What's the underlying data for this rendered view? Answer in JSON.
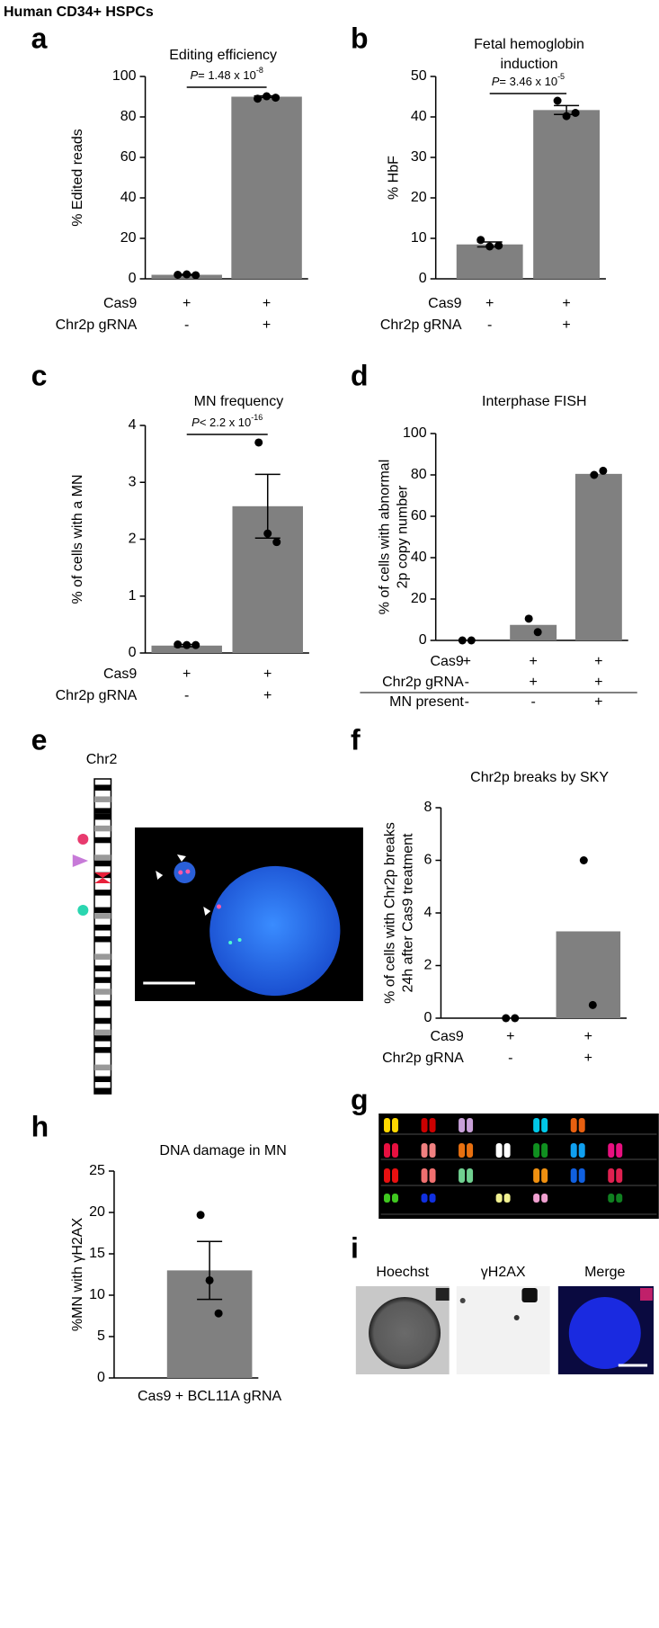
{
  "figure_title": "Human CD34+ HSPCs",
  "chart_data": [
    {
      "panel": "a",
      "type": "bar",
      "title": [
        "Editing efficiency"
      ],
      "ylabel": [
        "% Edited reads"
      ],
      "ylim": [
        0,
        100
      ],
      "yticks": [
        0,
        20,
        40,
        60,
        80,
        100
      ],
      "conditions": [
        {
          "name": "Cas9",
          "signs": [
            "+",
            "+"
          ]
        },
        {
          "name": "Chr2p gRNA",
          "signs": [
            "-",
            "+"
          ]
        }
      ],
      "values": [
        2,
        90
      ],
      "errors": [
        0.2,
        0.4
      ],
      "points": [
        [
          2,
          2.2,
          1.8
        ],
        [
          89,
          90.2,
          89.5
        ]
      ],
      "color": "#808080",
      "pvalue": {
        "symbol": "P",
        "text": "= 1.48 x 10",
        "exponent": "-8"
      }
    },
    {
      "panel": "b",
      "type": "bar",
      "title": [
        "Fetal hemoglobin",
        "induction"
      ],
      "ylabel": [
        "% HbF"
      ],
      "ylim": [
        0,
        50
      ],
      "yticks": [
        0,
        10,
        20,
        30,
        40,
        50
      ],
      "conditions": [
        {
          "name": "Cas9",
          "signs": [
            "+",
            "+"
          ]
        },
        {
          "name": "Chr2p gRNA",
          "signs": [
            "-",
            "+"
          ]
        }
      ],
      "values": [
        8.5,
        41.7
      ],
      "errors": [
        0.6,
        1.1
      ],
      "points": [
        [
          9.6,
          8,
          8.2
        ],
        [
          44,
          40.2,
          41
        ]
      ],
      "color": "#808080",
      "pvalue": {
        "symbol": "P",
        "text": "= 3.46 x 10",
        "exponent": "-5"
      }
    },
    {
      "panel": "c",
      "type": "bar",
      "title": [
        "MN frequency"
      ],
      "ylabel": [
        "% of cells with a MN"
      ],
      "ylim": [
        0,
        4
      ],
      "yticks": [
        0,
        1,
        2,
        3,
        4
      ],
      "conditions": [
        {
          "name": "Cas9",
          "signs": [
            "+",
            "+"
          ]
        },
        {
          "name": "Chr2p gRNA",
          "signs": [
            "-",
            "+"
          ]
        }
      ],
      "values": [
        0.13,
        2.58
      ],
      "errors": [
        0.02,
        0.56
      ],
      "points": [
        [
          0.15,
          0.14,
          0.14
        ],
        [
          3.7,
          2.1,
          1.95
        ]
      ],
      "color": "#808080",
      "pvalue": {
        "symbol": "P",
        "text": "< 2.2 x 10",
        "exponent": "-16"
      }
    },
    {
      "panel": "d",
      "type": "bar",
      "title": [
        "Interphase FISH"
      ],
      "ylabel": [
        "% of cells with abnormal",
        "2p copy number"
      ],
      "ylim": [
        0,
        100
      ],
      "yticks": [
        0,
        20,
        40,
        60,
        80,
        100
      ],
      "conditions": [
        {
          "name": "Cas9",
          "signs": [
            "+",
            "+",
            "+"
          ]
        },
        {
          "name": "Chr2p gRNA",
          "signs": [
            "-",
            "+",
            "+"
          ]
        },
        {
          "name": "MN present",
          "signs": [
            "-",
            "-",
            "+"
          ]
        }
      ],
      "values": [
        0,
        7.5,
        80.5
      ],
      "points": [
        [
          0,
          0
        ],
        [
          10.5,
          4
        ],
        [
          80,
          82
        ]
      ],
      "color": "#808080"
    },
    {
      "panel": "f",
      "type": "bar",
      "title": [
        "Chr2p breaks by SKY"
      ],
      "ylabel": [
        "% of cells with Chr2p breaks",
        "24h after Cas9 treatment"
      ],
      "ylim": [
        0,
        8
      ],
      "yticks": [
        0,
        2,
        4,
        6,
        8
      ],
      "conditions": [
        {
          "name": "Cas9",
          "signs": [
            "+",
            "+"
          ]
        },
        {
          "name": "Chr2p gRNA",
          "signs": [
            "-",
            "+"
          ]
        }
      ],
      "values": [
        0,
        3.3
      ],
      "points": [
        [
          0,
          0
        ],
        [
          6,
          0.5
        ]
      ],
      "color": "#808080"
    },
    {
      "panel": "h",
      "type": "bar",
      "title": [
        "DNA damage in MN"
      ],
      "ylabel": [
        "%MN with γH2AX"
      ],
      "ylim": [
        0,
        25
      ],
      "yticks": [
        0,
        5,
        10,
        15,
        20,
        25
      ],
      "categories": [
        "Cas9 + BCL11A gRNA"
      ],
      "values": [
        13
      ],
      "errors": [
        3.5
      ],
      "points": [
        [
          19.7,
          11.8,
          7.8
        ]
      ],
      "color": "#808080"
    }
  ],
  "panel_e": {
    "letter": "e",
    "label": "Chr2"
  },
  "panel_g": {
    "letter": "g"
  },
  "panel_i": {
    "letter": "i",
    "labels": [
      "Hoechst",
      "γH2AX",
      "Merge"
    ]
  }
}
